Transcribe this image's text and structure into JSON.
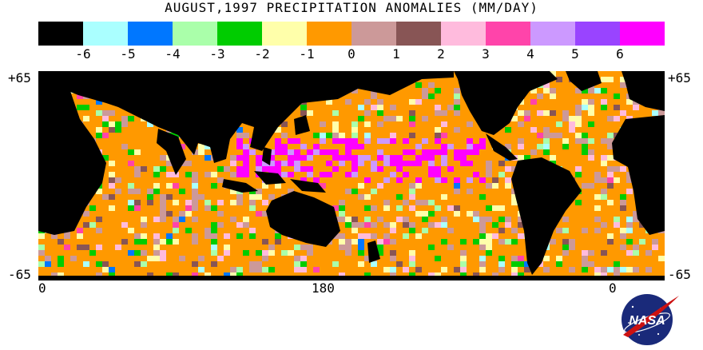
{
  "title": "AUGUST,1997  PRECIPITATION ANOMALIES  (MM/DAY)",
  "legend": {
    "colors": [
      "#000000",
      "#aaffff",
      "#0077ff",
      "#aaffaa",
      "#00cc00",
      "#ffffaa",
      "#ff9900",
      "#cc9999",
      "#885555",
      "#ffbbdd",
      "#ff44aa",
      "#cc99ff",
      "#9944ff",
      "#ff00ff"
    ],
    "ticks": [
      "-6",
      "-5",
      "-4",
      "-3",
      "-2",
      "-1",
      "0",
      "1",
      "2",
      "3",
      "4",
      "5",
      "6"
    ]
  },
  "axes": {
    "lat_top": "+65",
    "lat_bottom": "-65",
    "lon_labels": [
      "0",
      "180",
      "0"
    ]
  },
  "logo": {
    "text": "NASA",
    "colors": {
      "circle": "#1a2a7a",
      "swoosh": "#cc1111"
    }
  },
  "chart_data": {
    "type": "heatmap",
    "title": "AUGUST,1997  PRECIPITATION ANOMALIES  (MM/DAY)",
    "units": "MM/DAY",
    "lat_range": [
      -65,
      65
    ],
    "lon_labels": [
      "0",
      "180",
      "0"
    ],
    "scale_ticks": [
      -6,
      -5,
      -4,
      -3,
      -2,
      -1,
      0,
      1,
      2,
      3,
      4,
      5,
      6
    ],
    "land_color": "#000000",
    "dominant_ocean_anomaly": 0
  }
}
